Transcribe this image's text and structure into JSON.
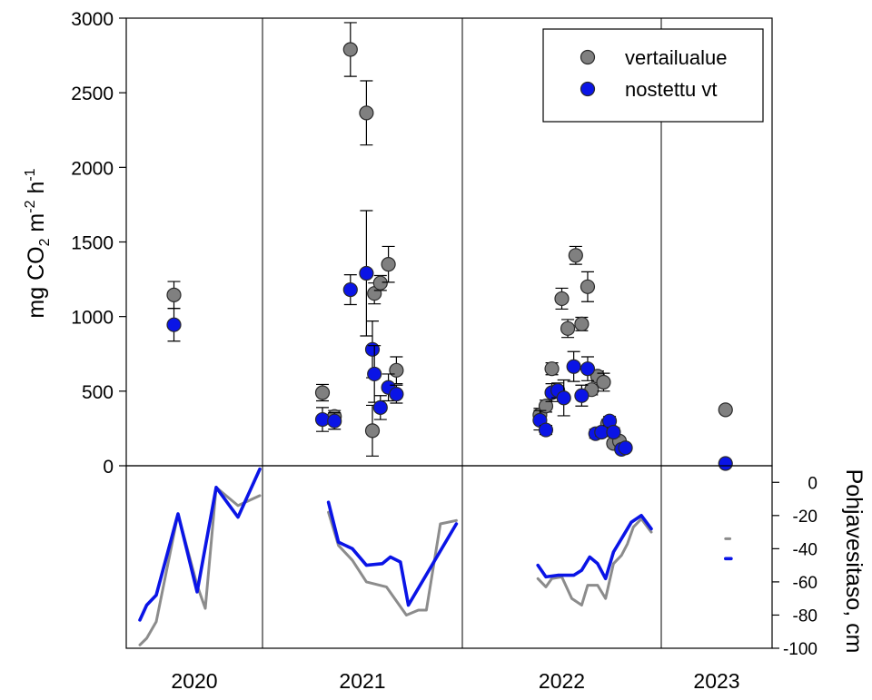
{
  "chart_data": [
    {
      "type": "scatter",
      "ylabel_parts": [
        "mg CO",
        "2",
        " m",
        "-2",
        " h",
        "-1"
      ],
      "ylim": [
        0,
        3000
      ],
      "yticks": [
        0,
        500,
        1000,
        1500,
        2000,
        2500,
        3000
      ],
      "grid": false,
      "legend_position": "top-right",
      "periods": [
        "2020",
        "2021",
        "2022",
        "2023"
      ],
      "series": [
        {
          "name": "vertailualue",
          "color": "#808080",
          "points": [
            {
              "period": "2020",
              "pos": 0.35,
              "y": 1145,
              "err": 90
            },
            {
              "period": "2021",
              "pos": 0.3,
              "y": 490,
              "err": 55
            },
            {
              "period": "2021",
              "pos": 0.36,
              "y": 330,
              "err": 40
            },
            {
              "period": "2021",
              "pos": 0.44,
              "y": 2790,
              "err": 180
            },
            {
              "period": "2021",
              "pos": 0.52,
              "y": 2365,
              "err": 215
            },
            {
              "period": "2021",
              "pos": 0.55,
              "y": 235,
              "err": 170
            },
            {
              "period": "2021",
              "pos": 0.56,
              "y": 1155,
              "err": 70
            },
            {
              "period": "2021",
              "pos": 0.59,
              "y": 1225,
              "err": 50
            },
            {
              "period": "2021",
              "pos": 0.63,
              "y": 1350,
              "err": 120
            },
            {
              "period": "2021",
              "pos": 0.67,
              "y": 640,
              "err": 90
            },
            {
              "period": "2022",
              "pos": 0.39,
              "y": 340,
              "err": 45
            },
            {
              "period": "2022",
              "pos": 0.42,
              "y": 400,
              "err": 40
            },
            {
              "period": "2022",
              "pos": 0.45,
              "y": 650,
              "err": 40
            },
            {
              "period": "2022",
              "pos": 0.5,
              "y": 1120,
              "err": 70
            },
            {
              "period": "2022",
              "pos": 0.53,
              "y": 920,
              "err": 60
            },
            {
              "period": "2022",
              "pos": 0.57,
              "y": 1410,
              "err": 60
            },
            {
              "period": "2022",
              "pos": 0.6,
              "y": 950,
              "err": 45
            },
            {
              "period": "2022",
              "pos": 0.63,
              "y": 1200,
              "err": 100
            },
            {
              "period": "2022",
              "pos": 0.65,
              "y": 510,
              "err": 35
            },
            {
              "period": "2022",
              "pos": 0.68,
              "y": 600,
              "err": 35
            },
            {
              "period": "2022",
              "pos": 0.71,
              "y": 560,
              "err": 60
            },
            {
              "period": "2022",
              "pos": 0.73,
              "y": 280,
              "err": 30
            },
            {
              "period": "2022",
              "pos": 0.76,
              "y": 150,
              "err": 25
            },
            {
              "period": "2022",
              "pos": 0.79,
              "y": 165,
              "err": 20
            },
            {
              "period": "2023",
              "pos": 0.58,
              "y": 375,
              "err": 0
            }
          ]
        },
        {
          "name": "nostettu vt",
          "color": "#0a14e6",
          "points": [
            {
              "period": "2020",
              "pos": 0.35,
              "y": 945,
              "err": 110
            },
            {
              "period": "2021",
              "pos": 0.3,
              "y": 310,
              "err": 80
            },
            {
              "period": "2021",
              "pos": 0.36,
              "y": 300,
              "err": 55
            },
            {
              "period": "2021",
              "pos": 0.44,
              "y": 1180,
              "err": 100
            },
            {
              "period": "2021",
              "pos": 0.52,
              "y": 1290,
              "err": 420
            },
            {
              "period": "2021",
              "pos": 0.55,
              "y": 780,
              "err": 190
            },
            {
              "period": "2021",
              "pos": 0.56,
              "y": 615,
              "err": 190
            },
            {
              "period": "2021",
              "pos": 0.59,
              "y": 390,
              "err": 80
            },
            {
              "period": "2021",
              "pos": 0.63,
              "y": 525,
              "err": 90
            },
            {
              "period": "2021",
              "pos": 0.67,
              "y": 480,
              "err": 60
            },
            {
              "period": "2022",
              "pos": 0.39,
              "y": 305,
              "err": 65
            },
            {
              "period": "2022",
              "pos": 0.42,
              "y": 240,
              "err": 30
            },
            {
              "period": "2022",
              "pos": 0.45,
              "y": 490,
              "err": 60
            },
            {
              "period": "2022",
              "pos": 0.48,
              "y": 505,
              "err": 50
            },
            {
              "period": "2022",
              "pos": 0.51,
              "y": 455,
              "err": 120
            },
            {
              "period": "2022",
              "pos": 0.56,
              "y": 665,
              "err": 100
            },
            {
              "period": "2022",
              "pos": 0.6,
              "y": 470,
              "err": 70
            },
            {
              "period": "2022",
              "pos": 0.63,
              "y": 650,
              "err": 80
            },
            {
              "period": "2022",
              "pos": 0.67,
              "y": 215,
              "err": 30
            },
            {
              "period": "2022",
              "pos": 0.7,
              "y": 225,
              "err": 25
            },
            {
              "period": "2022",
              "pos": 0.74,
              "y": 300,
              "err": 30
            },
            {
              "period": "2022",
              "pos": 0.76,
              "y": 225,
              "err": 30
            },
            {
              "period": "2022",
              "pos": 0.8,
              "y": 110,
              "err": 20
            },
            {
              "period": "2022",
              "pos": 0.82,
              "y": 120,
              "err": 20
            },
            {
              "period": "2023",
              "pos": 0.58,
              "y": 15,
              "err": 0
            }
          ]
        }
      ]
    },
    {
      "type": "line",
      "ylabel": "Pohjavesitaso, cm",
      "ylim": [
        -100,
        10
      ],
      "yticks": [
        -100,
        -80,
        -60,
        -40,
        -20,
        0
      ],
      "grid": false,
      "periods": [
        "2020",
        "2021",
        "2022",
        "2023"
      ],
      "series": [
        {
          "color": "#8c8c8c",
          "segments": [
            {
              "period": "2020",
              "points": [
                [
                  0.1,
                  -98
                ],
                [
                  0.15,
                  -94
                ],
                [
                  0.22,
                  -84
                ],
                [
                  0.38,
                  -19
                ],
                [
                  0.52,
                  -62
                ],
                [
                  0.58,
                  -76
                ],
                [
                  0.66,
                  -3
                ],
                [
                  0.82,
                  -14
                ],
                [
                  0.98,
                  -8
                ]
              ]
            },
            {
              "period": "2021",
              "points": [
                [
                  0.33,
                  -18
                ],
                [
                  0.38,
                  -38
                ],
                [
                  0.45,
                  -47
                ],
                [
                  0.52,
                  -60
                ],
                [
                  0.62,
                  -63
                ],
                [
                  0.72,
                  -80
                ],
                [
                  0.78,
                  -77
                ],
                [
                  0.82,
                  -77
                ],
                [
                  0.89,
                  -25
                ],
                [
                  0.97,
                  -23
                ]
              ]
            },
            {
              "period": "2022",
              "points": [
                [
                  0.38,
                  -58
                ],
                [
                  0.42,
                  -63
                ],
                [
                  0.45,
                  -58
                ],
                [
                  0.5,
                  -57
                ],
                [
                  0.55,
                  -70
                ],
                [
                  0.6,
                  -74
                ],
                [
                  0.63,
                  -62
                ],
                [
                  0.68,
                  -62
                ],
                [
                  0.72,
                  -70
                ],
                [
                  0.76,
                  -49
                ],
                [
                  0.8,
                  -44
                ],
                [
                  0.83,
                  -37
                ],
                [
                  0.86,
                  -27
                ],
                [
                  0.9,
                  -22
                ],
                [
                  0.95,
                  -30
                ]
              ]
            },
            {
              "period": "2023",
              "points": [
                [
                  0.58,
                  -34
                ],
                [
                  0.62,
                  -34
                ]
              ]
            }
          ]
        },
        {
          "color": "#0a14e6",
          "segments": [
            {
              "period": "2020",
              "points": [
                [
                  0.1,
                  -83
                ],
                [
                  0.15,
                  -74
                ],
                [
                  0.22,
                  -68
                ],
                [
                  0.38,
                  -19
                ],
                [
                  0.52,
                  -66
                ],
                [
                  0.66,
                  -3
                ],
                [
                  0.82,
                  -21
                ],
                [
                  0.98,
                  8
                ]
              ]
            },
            {
              "period": "2021",
              "points": [
                [
                  0.33,
                  -12
                ],
                [
                  0.38,
                  -36
                ],
                [
                  0.45,
                  -40
                ],
                [
                  0.52,
                  -50
                ],
                [
                  0.6,
                  -49
                ],
                [
                  0.64,
                  -45
                ],
                [
                  0.69,
                  -48
                ],
                [
                  0.73,
                  -74
                ],
                [
                  0.97,
                  -25
                ]
              ]
            },
            {
              "period": "2022",
              "points": [
                [
                  0.38,
                  -50
                ],
                [
                  0.42,
                  -57
                ],
                [
                  0.48,
                  -56
                ],
                [
                  0.56,
                  -56
                ],
                [
                  0.6,
                  -53
                ],
                [
                  0.64,
                  -45
                ],
                [
                  0.68,
                  -49
                ],
                [
                  0.72,
                  -58
                ],
                [
                  0.76,
                  -42
                ],
                [
                  0.81,
                  -32
                ],
                [
                  0.85,
                  -24
                ],
                [
                  0.9,
                  -20
                ],
                [
                  0.95,
                  -28
                ]
              ]
            },
            {
              "period": "2023",
              "points": [
                [
                  0.58,
                  -46
                ],
                [
                  0.63,
                  -46
                ]
              ]
            }
          ]
        }
      ]
    }
  ]
}
